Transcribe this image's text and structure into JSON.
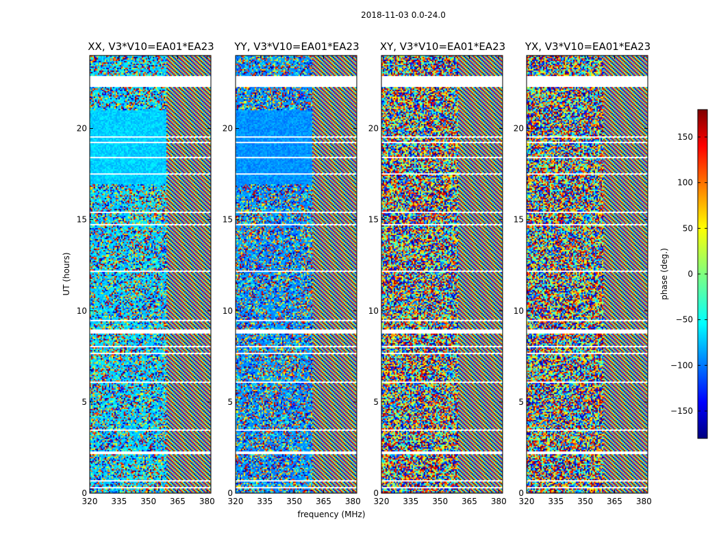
{
  "suptitle": "2018-11-03 0.0-24.0",
  "chart_data": {
    "type": "heatmap",
    "title": "2018-11-03 0.0-24.0",
    "xlabel": "frequency (MHz)",
    "ylabel": "UT (hours)",
    "xlim": [
      320,
      382
    ],
    "ylim": [
      0,
      24
    ],
    "xticks": [
      320,
      335,
      350,
      365,
      380
    ],
    "yticks": [
      0,
      5,
      10,
      15,
      20
    ],
    "panels": [
      {
        "title": "XX, V3*V10=EA01*EA23",
        "pol": "XX",
        "baseline": "V3*V10=EA01*EA23"
      },
      {
        "title": "YY, V3*V10=EA01*EA23",
        "pol": "YY",
        "baseline": "V3*V10=EA01*EA23"
      },
      {
        "title": "XY, V3*V10=EA01*EA23",
        "pol": "XY",
        "baseline": "V3*V10=EA01*EA23"
      },
      {
        "title": "YX, V3*V10=EA01*EA23",
        "pol": "YX",
        "baseline": "V3*V10=EA01*EA23"
      }
    ],
    "value": "phase",
    "colorbar": {
      "label": "phase (deg.)",
      "range": [
        -180,
        180
      ],
      "ticks": [
        -150,
        -100,
        -50,
        0,
        50,
        100,
        150
      ],
      "colormap": "jet"
    }
  }
}
